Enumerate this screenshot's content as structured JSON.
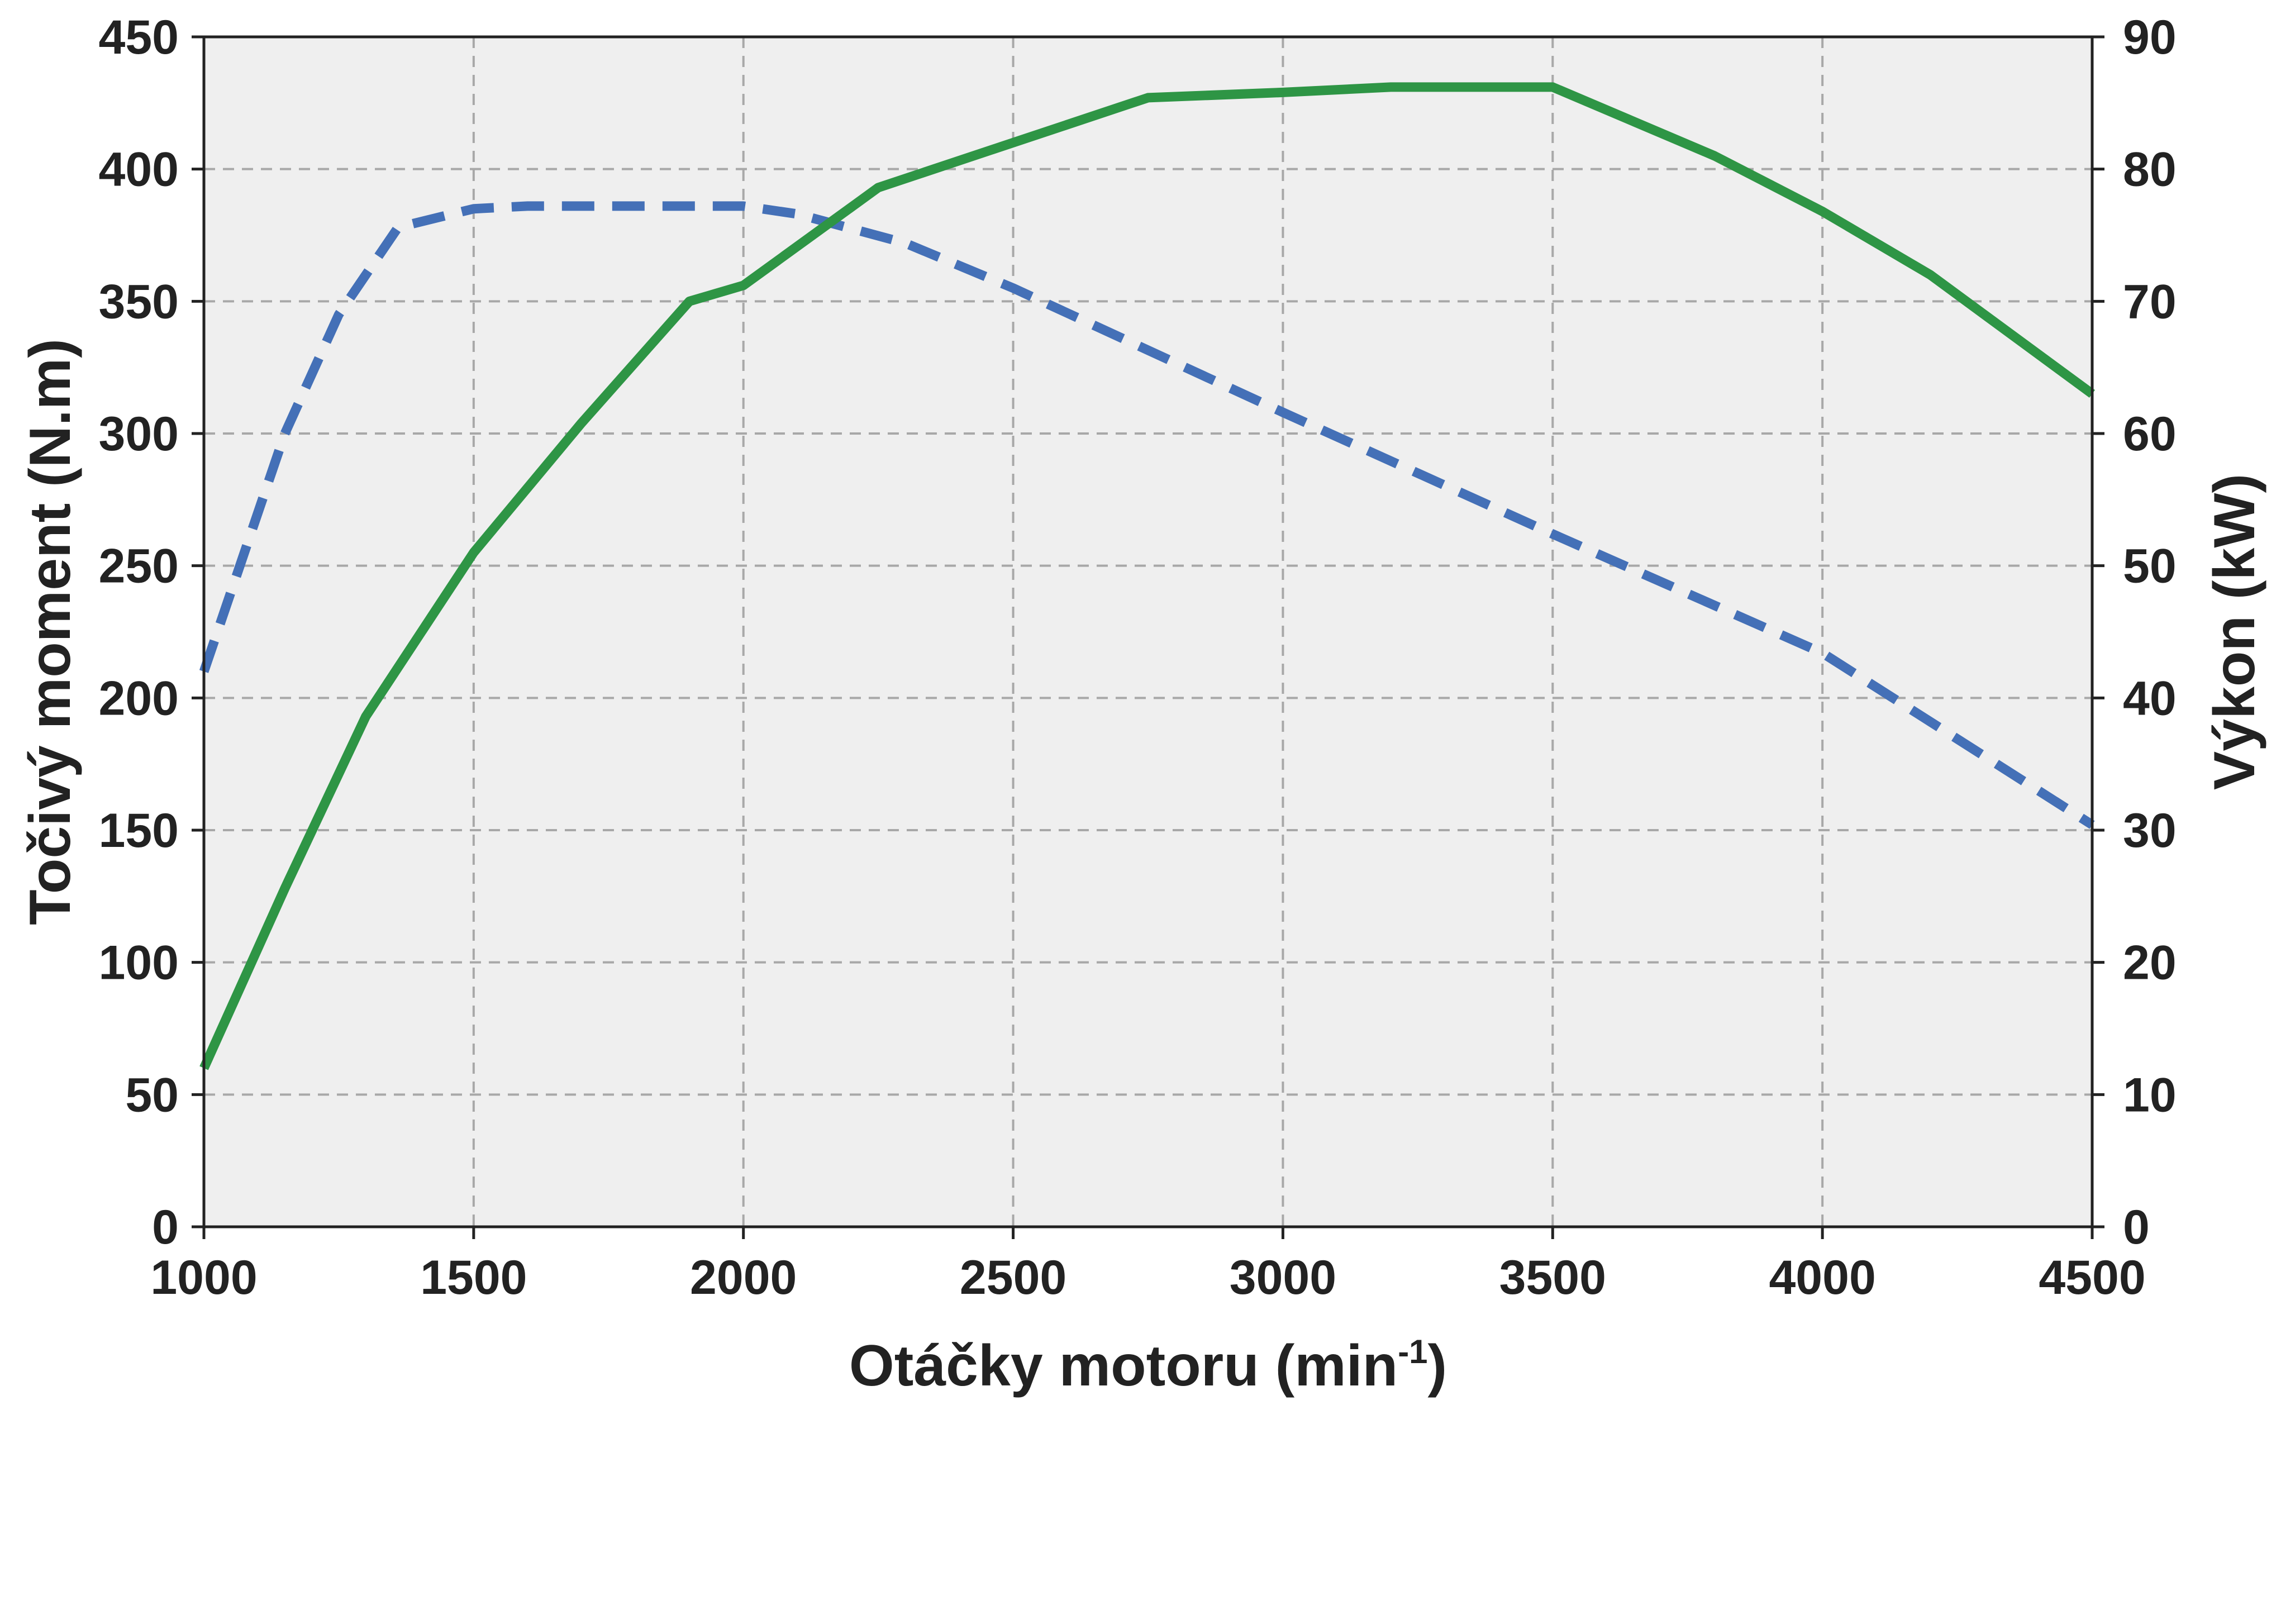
{
  "chart_data": {
    "type": "line",
    "title": "",
    "xlabel": "Otáčky motoru (min",
    "xlabel_sup": "-1",
    "xlabel_close": ")",
    "ylabel_left": "Točivý moment (N.m)",
    "ylabel_right": "Výkon (kW)",
    "xlim": [
      1000,
      4500
    ],
    "ylim_left": [
      0,
      450
    ],
    "ylim_right": [
      0,
      90
    ],
    "x_ticks": [
      "1000",
      "1500",
      "2000",
      "2500",
      "3000",
      "3500",
      "4000",
      "4500"
    ],
    "y_left_ticks": [
      "0",
      "50",
      "100",
      "150",
      "200",
      "250",
      "300",
      "350",
      "400",
      "450"
    ],
    "y_right_ticks": [
      "0",
      "10",
      "20",
      "30",
      "40",
      "50",
      "60",
      "70",
      "80",
      "90"
    ],
    "grid": true,
    "plot_background": "#efefef",
    "series": [
      {
        "axis": "left",
        "color": "#4470b7",
        "style": "dashed",
        "x": [
          1000,
          1150,
          1250,
          1360,
          1500,
          1600,
          2000,
          2100,
          2300,
          2500,
          3000,
          3500,
          4000,
          4500
        ],
        "values": [
          210,
          300,
          345,
          378,
          385,
          386,
          386,
          383,
          372,
          355,
          308,
          262,
          217,
          152
        ]
      },
      {
        "axis": "right",
        "color": "#2e9545",
        "style": "solid",
        "x": [
          1000,
          1150,
          1300,
          1500,
          1700,
          1900,
          2000,
          2250,
          2500,
          2750,
          3000,
          3200,
          3500,
          3800,
          4000,
          4200,
          4500
        ],
        "values": [
          12,
          25.6,
          38.6,
          51,
          60.8,
          70,
          71.2,
          78.6,
          82,
          85.4,
          85.8,
          86.2,
          86.2,
          81,
          76.8,
          72,
          63
        ]
      }
    ]
  }
}
